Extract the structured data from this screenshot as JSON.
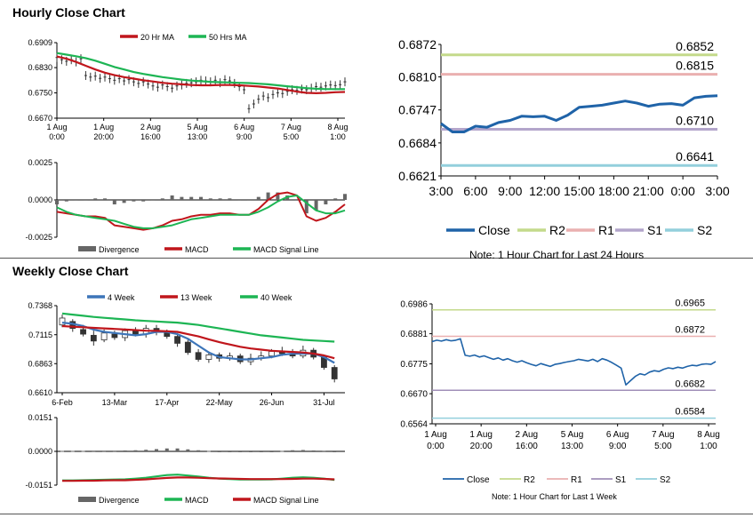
{
  "sections": {
    "hourly_title": "Hourly Close Chart",
    "weekly_title": "Weekly Close Chart"
  },
  "colors": {
    "red": "#c0161c",
    "green": "#1db554",
    "blue": "#3d75b9",
    "purple": "#a08fb8",
    "r2": "#c4da8b",
    "r1": "#eab0b0",
    "s1": "#b3a5cb",
    "s2": "#93cfdc",
    "close": "#1f63a8",
    "candle": "#333333",
    "divergence": "#666666"
  },
  "chart_data": [
    {
      "id": "hourly_price",
      "type": "line",
      "title": "",
      "ylim": [
        0.667,
        0.6909
      ],
      "yticks": [
        "0.6909",
        "0.6830",
        "0.6750",
        "0.6670"
      ],
      "xticks": [
        [
          "1 Aug",
          "0:00"
        ],
        [
          "1 Aug",
          "20:00"
        ],
        [
          "2 Aug",
          "16:00"
        ],
        [
          "5 Aug",
          "13:00"
        ],
        [
          "6 Aug",
          "9:00"
        ],
        [
          "7 Aug",
          "5:00"
        ],
        [
          "8 Aug",
          "1:00"
        ]
      ],
      "x": [
        0,
        6,
        12,
        18,
        24,
        30,
        36,
        42,
        48,
        54,
        60,
        66,
        72,
        78,
        84,
        90,
        96,
        102,
        108,
        114,
        120,
        126,
        132,
        138,
        144,
        150,
        156,
        162,
        168,
        174,
        180
      ],
      "series": [
        {
          "name": "20 Hr MA",
          "color": "red",
          "values": [
            0.6865,
            0.6858,
            0.6848,
            0.6836,
            0.6824,
            0.6814,
            0.6806,
            0.68,
            0.6795,
            0.679,
            0.6786,
            0.6782,
            0.6779,
            0.6777,
            0.6775,
            0.6774,
            0.6774,
            0.6775,
            0.6775,
            0.6774,
            0.6772,
            0.677,
            0.6767,
            0.6764,
            0.6759,
            0.6754,
            0.675,
            0.6749,
            0.675,
            0.6752,
            0.6753
          ]
        },
        {
          "name": "50 Hrs MA",
          "color": "green",
          "values": [
            0.6876,
            0.6871,
            0.6866,
            0.686,
            0.6852,
            0.6842,
            0.6832,
            0.6824,
            0.6816,
            0.681,
            0.6805,
            0.68,
            0.6796,
            0.6792,
            0.6789,
            0.6787,
            0.6785,
            0.6784,
            0.6783,
            0.6782,
            0.6781,
            0.6779,
            0.6777,
            0.6774,
            0.6771,
            0.6768,
            0.6765,
            0.6763,
            0.6762,
            0.6762,
            0.6762
          ]
        }
      ],
      "price": [
        0.6862,
        0.6855,
        0.685,
        0.6855,
        0.6848,
        0.6858,
        0.6805,
        0.68,
        0.6803,
        0.6796,
        0.68,
        0.6795,
        0.679,
        0.6795,
        0.6788,
        0.6792,
        0.6785,
        0.678,
        0.6785,
        0.6778,
        0.6772,
        0.6768,
        0.6775,
        0.677,
        0.6765,
        0.6772,
        0.6775,
        0.678,
        0.6782,
        0.6785,
        0.679,
        0.6788,
        0.6785,
        0.679,
        0.6782,
        0.6792,
        0.6788,
        0.678,
        0.677,
        0.676,
        0.67,
        0.6715,
        0.673,
        0.674,
        0.6735,
        0.6745,
        0.675,
        0.6748,
        0.6755,
        0.676,
        0.6758,
        0.6762,
        0.676,
        0.6765,
        0.677,
        0.6768,
        0.6772,
        0.6775,
        0.6773,
        0.6776,
        0.6785
      ],
      "legend": [
        "20 Hr MA",
        "50 Hrs MA"
      ]
    },
    {
      "id": "hourly_macd",
      "type": "line",
      "ylim": [
        -0.0025,
        0.0025
      ],
      "yticks": [
        "0.0025",
        "0.0000",
        "-0.0025"
      ],
      "x": [
        0,
        6,
        12,
        18,
        24,
        30,
        36,
        42,
        48,
        54,
        60,
        66,
        72,
        78,
        84,
        90,
        96,
        102,
        108,
        114,
        120,
        126,
        132,
        138,
        144,
        150,
        156,
        162,
        168,
        174,
        180
      ],
      "series": [
        {
          "name": "MACD",
          "color": "red",
          "values": [
            -0.0008,
            -0.0009,
            -0.001,
            -0.0011,
            -0.0011,
            -0.0012,
            -0.0017,
            -0.0018,
            -0.0019,
            -0.002,
            -0.0019,
            -0.0017,
            -0.0014,
            -0.0013,
            -0.0011,
            -0.001,
            -0.001,
            -0.0009,
            -0.0009,
            -0.001,
            -0.001,
            -0.0006,
            0.0,
            0.0004,
            0.0005,
            0.0003,
            -0.0011,
            -0.0014,
            -0.0012,
            -0.0008,
            -0.0003
          ]
        },
        {
          "name": "MACD Signal Line",
          "color": "green",
          "values": [
            -0.0005,
            -0.0008,
            -0.001,
            -0.0011,
            -0.0012,
            -0.0013,
            -0.0014,
            -0.0016,
            -0.0018,
            -0.0019,
            -0.0019,
            -0.0018,
            -0.0017,
            -0.0015,
            -0.0013,
            -0.0012,
            -0.0011,
            -0.001,
            -0.001,
            -0.001,
            -0.001,
            -0.0008,
            -0.0005,
            -0.0001,
            0.0002,
            0.0003,
            -0.0002,
            -0.0007,
            -0.0009,
            -0.0009,
            -0.0007
          ]
        }
      ],
      "divergence": [
        -0.0003,
        -0.0001,
        0.0,
        0.0,
        0.0001,
        0.0001,
        -0.0003,
        -0.0002,
        -0.0001,
        -0.0001,
        0.0,
        0.0001,
        0.0003,
        0.0002,
        0.0002,
        0.0002,
        0.0001,
        0.0001,
        0.0001,
        0.0,
        0.0,
        0.0002,
        0.0005,
        0.0005,
        0.0003,
        0.0,
        -0.0009,
        -0.0007,
        -0.0003,
        0.0001,
        0.0004
      ],
      "legend": [
        "Divergence",
        "MACD",
        "MACD Signal Line"
      ]
    },
    {
      "id": "hourly_24h",
      "type": "line",
      "ylim": [
        0.6621,
        0.6872
      ],
      "yticks": [
        "0.6872",
        "0.6810",
        "0.6747",
        "0.6684",
        "0.6621"
      ],
      "xticks": [
        "3:00",
        "6:00",
        "9:00",
        "12:00",
        "15:00",
        "18:00",
        "21:00",
        "0:00",
        "3:00"
      ],
      "x": [
        0,
        1,
        2,
        3,
        4,
        5,
        6,
        7,
        8,
        9,
        10,
        11,
        12,
        13,
        14,
        15,
        16,
        17,
        18,
        19,
        20,
        21,
        22,
        23,
        24
      ],
      "series": [
        {
          "name": "Close",
          "color": "close",
          "values": [
            0.6721,
            0.6705,
            0.6705,
            0.6716,
            0.6714,
            0.6723,
            0.6727,
            0.6735,
            0.6734,
            0.6735,
            0.6727,
            0.6737,
            0.6752,
            0.6754,
            0.6756,
            0.676,
            0.6764,
            0.676,
            0.6754,
            0.6758,
            0.6759,
            0.6756,
            0.677,
            0.6773,
            0.6774
          ]
        },
        {
          "name": "R2",
          "color": "r2",
          "level": 0.6852,
          "label": "0.6852"
        },
        {
          "name": "R1",
          "color": "r1",
          "level": 0.6815,
          "label": "0.6815"
        },
        {
          "name": "S1",
          "color": "s1",
          "level": 0.671,
          "label": "0.6710"
        },
        {
          "name": "S2",
          "color": "s2",
          "level": 0.6641,
          "label": "0.6641"
        }
      ],
      "legend": [
        "Close",
        "R2",
        "R1",
        "S1",
        "S2"
      ],
      "note": "Note: 1 Hour Chart for Last 24 Hours"
    },
    {
      "id": "weekly_price",
      "type": "line",
      "ylim": [
        0.661,
        0.7368
      ],
      "yticks": [
        "0.7368",
        "0.7115",
        "0.6863",
        "0.6610"
      ],
      "xticks": [
        "6-Feb",
        "13-Mar",
        "17-Apr",
        "22-May",
        "26-Jun",
        "31-Jul"
      ],
      "x": [
        0,
        1,
        2,
        3,
        4,
        5,
        6,
        7,
        8,
        9,
        10,
        11,
        12,
        13,
        14,
        15,
        16,
        17,
        18,
        19,
        20,
        21,
        22,
        23,
        24,
        25,
        26
      ],
      "candles": [
        [
          0.72,
          0.726,
          0.718,
          0.729
        ],
        [
          0.723,
          0.717,
          0.714,
          0.725
        ],
        [
          0.716,
          0.712,
          0.71,
          0.72
        ],
        [
          0.711,
          0.706,
          0.702,
          0.715
        ],
        [
          0.707,
          0.713,
          0.705,
          0.716
        ],
        [
          0.712,
          0.709,
          0.707,
          0.715
        ],
        [
          0.709,
          0.715,
          0.706,
          0.717
        ],
        [
          0.715,
          0.712,
          0.71,
          0.718
        ],
        [
          0.712,
          0.717,
          0.709,
          0.72
        ],
        [
          0.717,
          0.714,
          0.711,
          0.72
        ],
        [
          0.714,
          0.71,
          0.708,
          0.716
        ],
        [
          0.71,
          0.704,
          0.701,
          0.713
        ],
        [
          0.705,
          0.696,
          0.694,
          0.707
        ],
        [
          0.696,
          0.69,
          0.688,
          0.699
        ],
        [
          0.69,
          0.694,
          0.687,
          0.697
        ],
        [
          0.694,
          0.691,
          0.688,
          0.696
        ],
        [
          0.691,
          0.693,
          0.689,
          0.696
        ],
        [
          0.693,
          0.688,
          0.686,
          0.695
        ],
        [
          0.688,
          0.691,
          0.685,
          0.695
        ],
        [
          0.691,
          0.693,
          0.689,
          0.697
        ],
        [
          0.693,
          0.697,
          0.691,
          0.699
        ],
        [
          0.697,
          0.695,
          0.693,
          0.701
        ],
        [
          0.695,
          0.693,
          0.691,
          0.699
        ],
        [
          0.693,
          0.698,
          0.691,
          0.702
        ],
        [
          0.698,
          0.692,
          0.69,
          0.7
        ],
        [
          0.692,
          0.683,
          0.681,
          0.694
        ],
        [
          0.683,
          0.673,
          0.67,
          0.685
        ]
      ],
      "series": [
        {
          "name": "4 Week",
          "color": "blue",
          "values": [
            0.722,
            0.721,
            0.719,
            0.716,
            0.714,
            0.713,
            0.712,
            0.711,
            0.712,
            0.714,
            0.714,
            0.712,
            0.708,
            0.702,
            0.696,
            0.692,
            0.691,
            0.69,
            0.69,
            0.691,
            0.692,
            0.694,
            0.695,
            0.695,
            0.695,
            0.692,
            0.687
          ]
        },
        {
          "name": "13 Week",
          "color": "red",
          "values": [
            0.719,
            0.7185,
            0.718,
            0.7175,
            0.717,
            0.7165,
            0.716,
            0.7155,
            0.715,
            0.7148,
            0.7145,
            0.714,
            0.712,
            0.71,
            0.7075,
            0.705,
            0.703,
            0.701,
            0.6995,
            0.6985,
            0.6975,
            0.697,
            0.6965,
            0.696,
            0.695,
            0.6935,
            0.691
          ]
        },
        {
          "name": "40 Week",
          "color": "green",
          "values": [
            0.73,
            0.729,
            0.728,
            0.727,
            0.7262,
            0.7255,
            0.7248,
            0.724,
            0.7235,
            0.723,
            0.7225,
            0.722,
            0.721,
            0.72,
            0.7185,
            0.717,
            0.7155,
            0.714,
            0.7125,
            0.711,
            0.71,
            0.709,
            0.708,
            0.707,
            0.7065,
            0.706,
            0.7055
          ]
        }
      ],
      "legend": [
        "4 Week",
        "13 Week",
        "40 Week"
      ]
    },
    {
      "id": "weekly_macd",
      "type": "line",
      "ylim": [
        -0.0151,
        0.0151
      ],
      "yticks": [
        "0.0151",
        "0.0000",
        "-0.0151"
      ],
      "x": [
        0,
        1,
        2,
        3,
        4,
        5,
        6,
        7,
        8,
        9,
        10,
        11,
        12,
        13,
        14,
        15,
        16,
        17,
        18,
        19,
        20,
        21,
        22,
        23,
        24,
        25,
        26
      ],
      "series": [
        {
          "name": "MACD",
          "color": "green",
          "values": [
            -0.013,
            -0.013,
            -0.0129,
            -0.0128,
            -0.0127,
            -0.0126,
            -0.0125,
            -0.0122,
            -0.0118,
            -0.0112,
            -0.0106,
            -0.0104,
            -0.0108,
            -0.0113,
            -0.0118,
            -0.0122,
            -0.0124,
            -0.0126,
            -0.0126,
            -0.0126,
            -0.0125,
            -0.0122,
            -0.0118,
            -0.0116,
            -0.0118,
            -0.0122,
            -0.0128
          ]
        },
        {
          "name": "MACD Signal Line",
          "color": "red",
          "values": [
            -0.0132,
            -0.0132,
            -0.0131,
            -0.0131,
            -0.013,
            -0.0129,
            -0.0129,
            -0.0127,
            -0.0125,
            -0.0122,
            -0.0119,
            -0.0117,
            -0.0117,
            -0.0118,
            -0.012,
            -0.0121,
            -0.0122,
            -0.0123,
            -0.0124,
            -0.0124,
            -0.0124,
            -0.0124,
            -0.0123,
            -0.0122,
            -0.0122,
            -0.0123,
            -0.0125
          ]
        }
      ],
      "divergence": [
        0.0002,
        0.0002,
        0.0002,
        0.0003,
        0.0003,
        0.0003,
        0.0004,
        0.0005,
        0.0007,
        0.001,
        0.0013,
        0.0013,
        0.0009,
        0.0005,
        0.0002,
        -0.0001,
        -0.0002,
        -0.0003,
        -0.0002,
        -0.0002,
        -0.0001,
        0.0002,
        0.0005,
        0.0006,
        0.0004,
        0.0001,
        -0.0003
      ],
      "legend": [
        "Divergence",
        "MACD",
        "MACD Signal Line"
      ]
    },
    {
      "id": "weekly_1w",
      "type": "line",
      "ylim": [
        0.6564,
        0.6986
      ],
      "yticks": [
        "0.6986",
        "0.6881",
        "0.6775",
        "0.6670",
        "0.6564"
      ],
      "xticks": [
        [
          "1 Aug",
          "0:00"
        ],
        [
          "1 Aug",
          "20:00"
        ],
        [
          "2 Aug",
          "16:00"
        ],
        [
          "5 Aug",
          "13:00"
        ],
        [
          "6 Aug",
          "9:00"
        ],
        [
          "7 Aug",
          "5:00"
        ],
        [
          "8 Aug",
          "1:00"
        ]
      ],
      "x": [
        0,
        1,
        2,
        3,
        4,
        5,
        6,
        7,
        8,
        9,
        10,
        11,
        12,
        13,
        14,
        15,
        16,
        17,
        18,
        19,
        20,
        21,
        22,
        23,
        24,
        25,
        26,
        27,
        28,
        29,
        30,
        31,
        32,
        33,
        34,
        35,
        36,
        37,
        38,
        39,
        40,
        41,
        42,
        43,
        44,
        45,
        46,
        47,
        48,
        49,
        50,
        51,
        52,
        53,
        54,
        55,
        56,
        57,
        58,
        59,
        60
      ],
      "series": [
        {
          "name": "Close",
          "color": "close",
          "values": [
            0.6853,
            0.6858,
            0.6855,
            0.686,
            0.6856,
            0.6858,
            0.6863,
            0.6805,
            0.6802,
            0.6806,
            0.6799,
            0.6803,
            0.6797,
            0.6791,
            0.6796,
            0.6788,
            0.6793,
            0.6786,
            0.6781,
            0.6786,
            0.6779,
            0.6773,
            0.6768,
            0.6776,
            0.6771,
            0.6766,
            0.6773,
            0.6776,
            0.678,
            0.6783,
            0.6786,
            0.6791,
            0.6788,
            0.6785,
            0.6791,
            0.6783,
            0.6793,
            0.6788,
            0.678,
            0.677,
            0.676,
            0.6701,
            0.6716,
            0.6731,
            0.674,
            0.6736,
            0.6746,
            0.6751,
            0.6748,
            0.6756,
            0.6761,
            0.6758,
            0.6763,
            0.676,
            0.6766,
            0.677,
            0.6768,
            0.6773,
            0.6775,
            0.6773,
            0.6783
          ]
        },
        {
          "name": "R2",
          "color": "r2",
          "level": 0.6965,
          "label": "0.6965"
        },
        {
          "name": "R1",
          "color": "r1",
          "level": 0.6872,
          "label": "0.6872"
        },
        {
          "name": "S1",
          "color": "purple",
          "level": 0.6682,
          "label": "0.6682"
        },
        {
          "name": "S2",
          "color": "s2",
          "level": 0.6584,
          "label": "0.6584"
        }
      ],
      "legend": [
        "Close",
        "R2",
        "R1",
        "S1",
        "S2"
      ],
      "note": "Note: 1 Hour Chart for Last 1 Week"
    }
  ]
}
